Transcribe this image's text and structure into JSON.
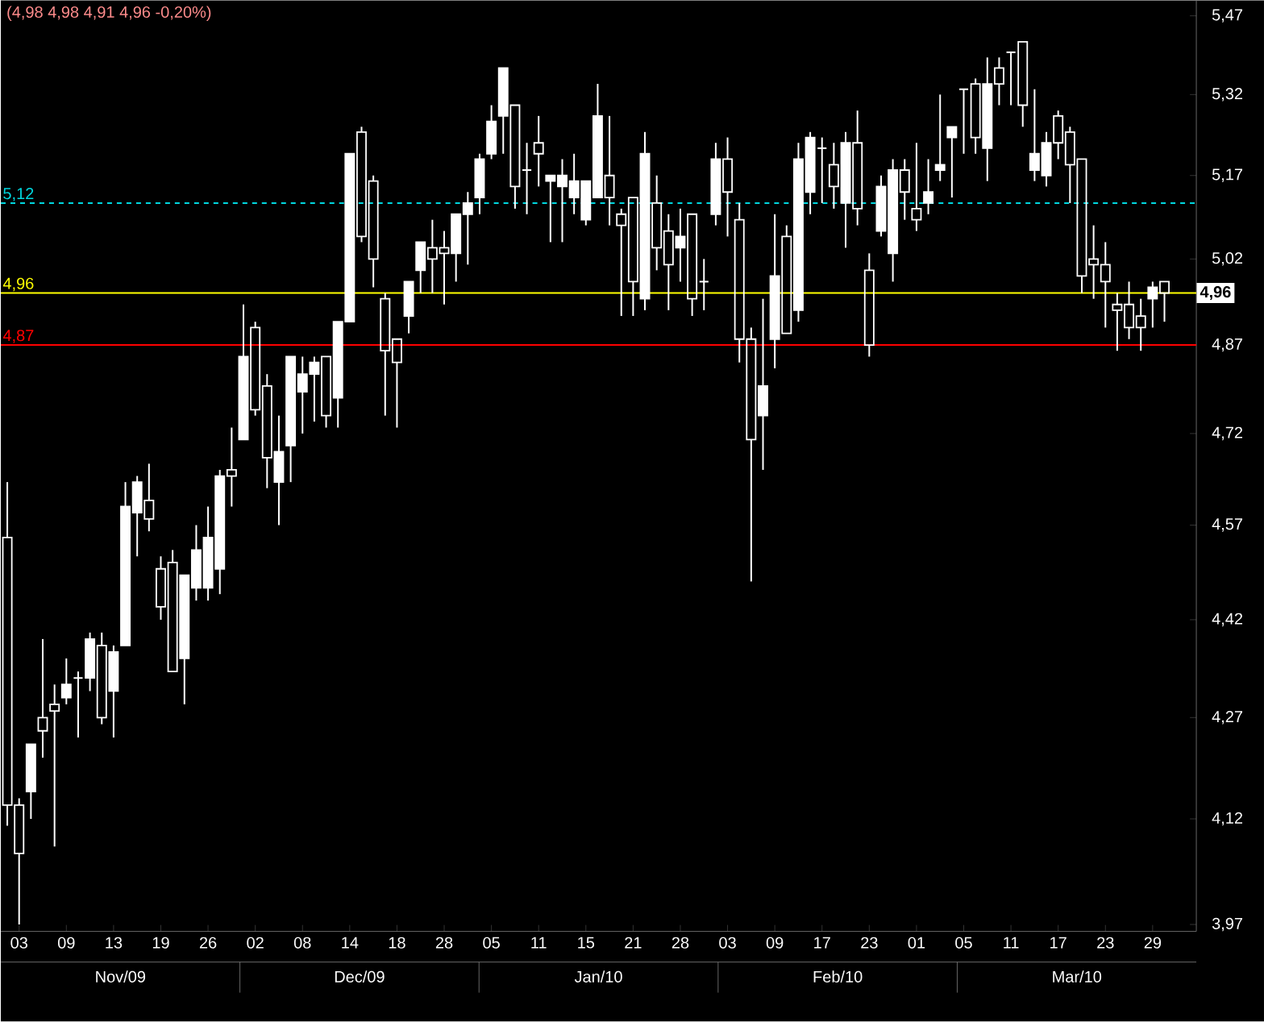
{
  "chart_data": {
    "type": "candlestick",
    "title": "(4,98  4,98  4,91  4,96  -0,20%)",
    "categories": [
      null,
      "03",
      null,
      null,
      null,
      "09",
      null,
      null,
      null,
      "13",
      null,
      null,
      null,
      "19",
      null,
      null,
      null,
      "26",
      null,
      null,
      null,
      "02",
      null,
      null,
      null,
      "08",
      null,
      null,
      null,
      "14",
      null,
      null,
      null,
      "18",
      null,
      null,
      null,
      "28",
      null,
      null,
      null,
      "05",
      null,
      null,
      null,
      "11",
      null,
      null,
      null,
      "15",
      null,
      null,
      null,
      "21",
      null,
      null,
      null,
      "28",
      null,
      null,
      null,
      "03",
      null,
      null,
      null,
      "09",
      null,
      null,
      null,
      "17",
      null,
      null,
      null,
      "23",
      null,
      null,
      null,
      "01",
      null,
      null,
      null,
      "05",
      null,
      null,
      null,
      "11",
      null,
      null,
      null,
      "17",
      null,
      null,
      null,
      "23",
      null,
      null,
      null,
      "29",
      null
    ],
    "ohlc": [
      [
        4.55,
        4.64,
        4.11,
        4.14
      ],
      [
        4.14,
        4.15,
        3.97,
        4.07
      ],
      [
        4.16,
        4.23,
        4.12,
        4.23
      ],
      [
        4.27,
        4.39,
        4.21,
        4.25
      ],
      [
        4.29,
        4.32,
        4.08,
        4.28
      ],
      [
        4.3,
        4.36,
        4.29,
        4.32
      ],
      [
        4.33,
        4.34,
        4.24,
        4.33
      ],
      [
        4.33,
        4.4,
        4.31,
        4.39
      ],
      [
        4.38,
        4.4,
        4.26,
        4.27
      ],
      [
        4.31,
        4.38,
        4.24,
        4.37
      ],
      [
        4.38,
        4.64,
        4.38,
        4.6
      ],
      [
        4.59,
        4.65,
        4.52,
        4.64
      ],
      [
        4.61,
        4.67,
        4.56,
        4.58
      ],
      [
        4.5,
        4.52,
        4.42,
        4.44
      ],
      [
        4.51,
        4.53,
        4.34,
        4.34
      ],
      [
        4.36,
        4.49,
        4.29,
        4.49
      ],
      [
        4.47,
        4.57,
        4.45,
        4.53
      ],
      [
        4.47,
        4.6,
        4.45,
        4.55
      ],
      [
        4.5,
        4.66,
        4.46,
        4.65
      ],
      [
        4.66,
        4.73,
        4.6,
        4.65
      ],
      [
        4.71,
        4.94,
        4.71,
        4.85
      ],
      [
        4.9,
        4.91,
        4.75,
        4.76
      ],
      [
        4.8,
        4.82,
        4.63,
        4.68
      ],
      [
        4.64,
        4.75,
        4.57,
        4.69
      ],
      [
        4.7,
        4.85,
        4.64,
        4.85
      ],
      [
        4.79,
        4.85,
        4.72,
        4.82
      ],
      [
        4.82,
        4.85,
        4.74,
        4.84
      ],
      [
        4.85,
        4.85,
        4.73,
        4.75
      ],
      [
        4.78,
        4.91,
        4.73,
        4.91
      ],
      [
        4.91,
        5.21,
        4.91,
        5.21
      ],
      [
        5.25,
        5.26,
        5.05,
        5.06
      ],
      [
        5.16,
        5.17,
        4.97,
        5.02
      ],
      [
        4.95,
        4.96,
        4.75,
        4.86
      ],
      [
        4.88,
        4.88,
        4.73,
        4.84
      ],
      [
        4.92,
        4.98,
        4.89,
        4.98
      ],
      [
        5.0,
        5.05,
        4.96,
        5.05
      ],
      [
        5.04,
        5.09,
        4.96,
        5.02
      ],
      [
        5.04,
        5.07,
        4.94,
        5.03
      ],
      [
        5.03,
        5.1,
        4.98,
        5.1
      ],
      [
        5.1,
        5.14,
        5.01,
        5.12
      ],
      [
        5.13,
        5.21,
        5.1,
        5.2
      ],
      [
        5.21,
        5.3,
        5.2,
        5.27
      ],
      [
        5.28,
        5.37,
        5.21,
        5.37
      ],
      [
        5.3,
        5.3,
        5.11,
        5.15
      ],
      [
        5.18,
        5.23,
        5.1,
        5.18
      ],
      [
        5.23,
        5.28,
        5.15,
        5.21
      ],
      [
        5.16,
        5.17,
        5.05,
        5.17
      ],
      [
        5.15,
        5.2,
        5.05,
        5.17
      ],
      [
        5.13,
        5.21,
        5.1,
        5.16
      ],
      [
        5.09,
        5.16,
        5.08,
        5.16
      ],
      [
        5.13,
        5.34,
        5.13,
        5.28
      ],
      [
        5.17,
        5.28,
        5.08,
        5.13
      ],
      [
        5.1,
        5.11,
        4.92,
        5.08
      ],
      [
        5.13,
        5.13,
        4.92,
        4.98
      ],
      [
        4.95,
        5.25,
        4.93,
        5.21
      ],
      [
        5.12,
        5.17,
        5.0,
        5.04
      ],
      [
        5.07,
        5.1,
        4.93,
        5.01
      ],
      [
        5.04,
        5.11,
        4.98,
        5.06
      ],
      [
        5.1,
        5.1,
        4.92,
        4.95
      ],
      [
        4.98,
        5.02,
        4.93,
        4.98
      ],
      [
        5.1,
        5.23,
        5.08,
        5.2
      ],
      [
        5.2,
        5.24,
        5.06,
        5.14
      ],
      [
        5.09,
        5.12,
        4.84,
        4.88
      ],
      [
        4.88,
        4.9,
        4.48,
        4.71
      ],
      [
        4.75,
        4.95,
        4.66,
        4.8
      ],
      [
        4.88,
        5.1,
        4.83,
        4.99
      ],
      [
        5.06,
        5.08,
        4.89,
        4.89
      ],
      [
        4.93,
        5.23,
        4.91,
        5.2
      ],
      [
        5.14,
        5.25,
        5.1,
        5.24
      ],
      [
        5.22,
        5.24,
        5.12,
        5.22
      ],
      [
        5.19,
        5.23,
        5.11,
        5.15
      ],
      [
        5.12,
        5.25,
        5.04,
        5.23
      ],
      [
        5.23,
        5.29,
        5.08,
        5.11
      ],
      [
        5.0,
        5.03,
        4.85,
        4.87
      ],
      [
        5.07,
        5.17,
        5.06,
        5.15
      ],
      [
        5.03,
        5.2,
        4.98,
        5.18
      ],
      [
        5.18,
        5.2,
        5.09,
        5.14
      ],
      [
        5.11,
        5.23,
        5.07,
        5.09
      ],
      [
        5.12,
        5.2,
        5.1,
        5.14
      ],
      [
        5.18,
        5.32,
        5.16,
        5.19
      ],
      [
        5.24,
        5.26,
        5.13,
        5.26
      ],
      [
        5.33,
        5.33,
        5.21,
        5.33
      ],
      [
        5.34,
        5.35,
        5.21,
        5.24
      ],
      [
        5.22,
        5.39,
        5.16,
        5.34
      ],
      [
        5.37,
        5.39,
        5.3,
        5.34
      ],
      [
        5.4,
        5.4,
        5.3,
        5.4
      ],
      [
        5.42,
        5.42,
        5.26,
        5.3
      ],
      [
        5.18,
        5.33,
        5.16,
        5.21
      ],
      [
        5.17,
        5.25,
        5.15,
        5.23
      ],
      [
        5.28,
        5.29,
        5.2,
        5.23
      ],
      [
        5.25,
        5.26,
        5.12,
        5.19
      ],
      [
        5.2,
        5.2,
        4.96,
        4.99
      ],
      [
        5.02,
        5.08,
        4.95,
        5.01
      ],
      [
        5.01,
        5.05,
        4.9,
        4.98
      ],
      [
        4.94,
        4.96,
        4.86,
        4.93
      ],
      [
        4.94,
        4.98,
        4.88,
        4.9
      ],
      [
        4.92,
        4.95,
        4.86,
        4.9
      ],
      [
        4.95,
        4.98,
        4.9,
        4.97
      ],
      [
        4.98,
        4.98,
        4.91,
        4.96
      ]
    ],
    "color": "#ffffff",
    "log": true,
    "ylim": [
      3.96,
      5.5
    ],
    "yticks": [
      {
        "value": 3.97,
        "label": "3,97"
      },
      {
        "value": 4.12,
        "label": "4,12"
      },
      {
        "value": 4.27,
        "label": "4,27"
      },
      {
        "value": 4.42,
        "label": "4,42"
      },
      {
        "value": 4.57,
        "label": "4,57"
      },
      {
        "value": 4.72,
        "label": "4,72"
      },
      {
        "value": 4.87,
        "label": "4,87"
      },
      {
        "value": 5.02,
        "label": "5,02"
      },
      {
        "value": 5.17,
        "label": "5,17"
      },
      {
        "value": 5.32,
        "label": "5,32"
      },
      {
        "value": 5.47,
        "label": "5,47"
      }
    ],
    "ref_lines": [
      {
        "axis": "y",
        "value": 5.12,
        "label": "5,12",
        "color": "#00d8e0",
        "line_style": "dashed"
      },
      {
        "axis": "y",
        "value": 4.96,
        "label": "4,96",
        "color": "#ffff00",
        "line_style": "solid"
      },
      {
        "axis": "y",
        "value": 4.87,
        "label": "4,87",
        "color": "#ff0000",
        "line_style": "solid"
      }
    ],
    "annotations": [
      "4,96",
      "Nov/09",
      "Dec/09",
      "Jan/10",
      "Feb/10",
      "Mar/10"
    ]
  }
}
